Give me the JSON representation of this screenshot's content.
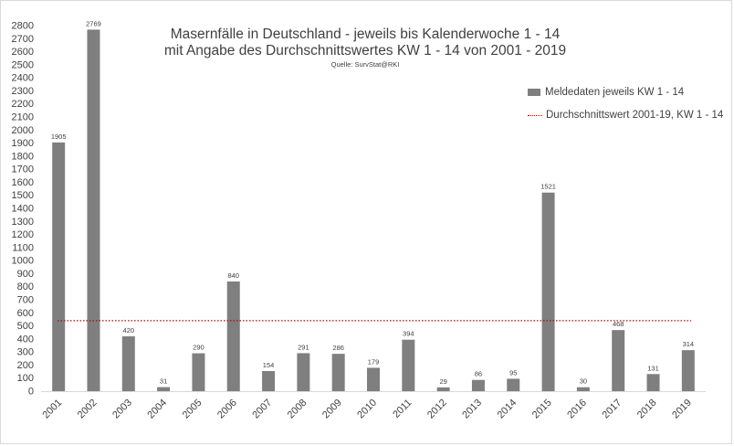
{
  "chart_data": {
    "type": "bar",
    "title": "Masernfälle in Deutschland - jeweils bis Kalenderwoche 1 - 14",
    "subtitle": "mit Angabe des Durchschnittswertes KW 1 - 14 von 2001 - 2019",
    "source": "Quelle: SurvStat@RKI",
    "categories": [
      "2001",
      "2002",
      "2003",
      "2004",
      "2005",
      "2006",
      "2007",
      "2008",
      "2009",
      "2010",
      "2011",
      "2012",
      "2013",
      "2014",
      "2015",
      "2016",
      "2017",
      "2018",
      "2019"
    ],
    "series": [
      {
        "name": "Meldedaten jeweils KW 1 - 14",
        "color": "#7f7f7f",
        "values": [
          1905,
          2769,
          420,
          31,
          290,
          840,
          154,
          291,
          286,
          179,
          394,
          29,
          86,
          95,
          1521,
          30,
          468,
          131,
          314
        ]
      }
    ],
    "reference_line": {
      "name": "Durchschnittswert 2001-19, KW 1 - 14",
      "color": "#c00000",
      "value": 540
    },
    "ylim": [
      0,
      2800
    ],
    "ytick_step": 100,
    "grid": false,
    "legend_position": "right"
  }
}
